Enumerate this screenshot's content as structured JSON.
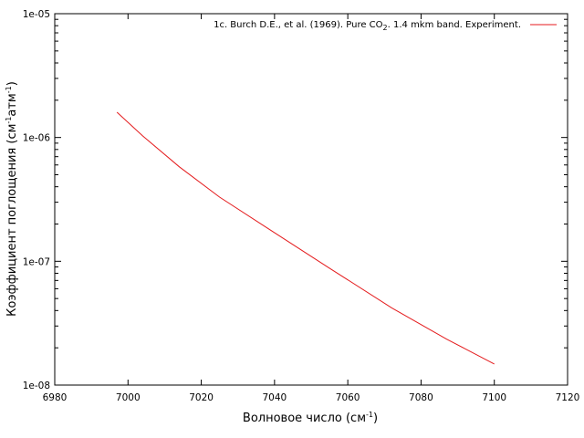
{
  "chart_data": {
    "type": "line",
    "title": "",
    "xlabel": {
      "base": "Волновое число (см",
      "sup": "-1",
      "tail": ")"
    },
    "ylabel": {
      "p1": "Коэффициент поглощения (см",
      "s1": "-1",
      "p2": "атм",
      "s2": "-1",
      "p3": ")"
    },
    "xlim": [
      6980,
      7120
    ],
    "ylim": [
      1e-08,
      1e-05
    ],
    "yscale": "log",
    "grid": false,
    "legend_position": "top-right",
    "x_ticks": [
      "6980",
      "7000",
      "7020",
      "7040",
      "7060",
      "7080",
      "7100",
      "7120"
    ],
    "y_ticks": [
      "1e-08",
      "1e-07",
      "1e-06",
      "1e-05"
    ],
    "series": [
      {
        "name": "1c. Burch D.E., et al. (1969). Pure CO2. 1.4 mkm band. Experiment.",
        "legend": {
          "pre": "1c. Burch D.E., et al. (1969). Pure CO",
          "sub": "2",
          "post": ". 1.4 mkm band. Experiment."
        },
        "color": "#e41a1c",
        "x": [
          6997,
          7004,
          7014,
          7025,
          7040,
          7055,
          7072,
          7087,
          7100
        ],
        "y": [
          1.6e-06,
          1.03e-06,
          5.8e-07,
          3.3e-07,
          1.7e-07,
          8.8e-08,
          4.2e-08,
          2.35e-08,
          1.48e-08
        ]
      }
    ]
  }
}
